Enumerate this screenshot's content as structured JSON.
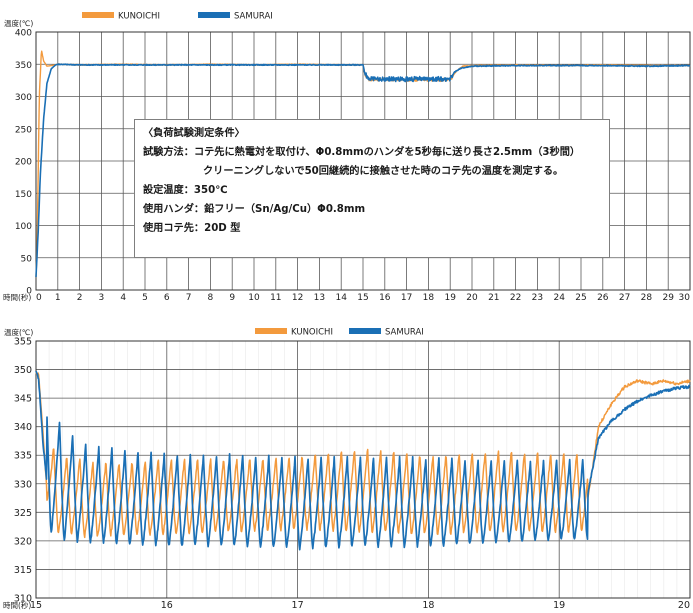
{
  "colors": {
    "kunoichi": "#F39A3D",
    "samurai": "#1A6FB5",
    "grid": "#5a5a5a",
    "gridMinor": "#dddddd"
  },
  "conditions": {
    "heading": "〈負荷試験測定条件〉",
    "method_label": "試験方法：",
    "method_1": "コテ先に熱電対を取付け、Φ0.8mmのハンダを5秒毎に送り長さ2.5mm（3秒間）",
    "method_2": "クリーニングしないで50回継続的に接触させた時のコテ先の温度を測定する。",
    "temp": "設定温度：350℃",
    "solder": "使用ハンダ：鉛フリー（Sn/Ag/Cu）Φ0.8mm",
    "tip": "使用コテ先：20D 型"
  },
  "chart_data": [
    {
      "type": "line",
      "ylabel": "温度(℃)",
      "xlabel": "時間(秒)",
      "xlim": [
        0,
        30
      ],
      "ylim": [
        0,
        400
      ],
      "xticks": [
        0,
        1,
        2,
        3,
        4,
        5,
        6,
        7,
        8,
        9,
        10,
        11,
        12,
        13,
        14,
        15,
        16,
        17,
        18,
        19,
        20,
        21,
        22,
        23,
        24,
        25,
        26,
        27,
        28,
        29,
        30
      ],
      "yticks": [
        0,
        50,
        100,
        150,
        200,
        250,
        300,
        350,
        400
      ],
      "legend": "top-left",
      "grid": true,
      "series": [
        {
          "name": "KUNOICHI",
          "color": "#F39A3D",
          "x": [
            0,
            0.05,
            0.15,
            0.25,
            0.35,
            0.5,
            0.7,
            1.0,
            2,
            4,
            6,
            8,
            10,
            12,
            14,
            15,
            15.1,
            15.3,
            19,
            19.3,
            19.6,
            20,
            22,
            24,
            26,
            28,
            30
          ],
          "y": [
            20,
            60,
            300,
            372,
            355,
            347,
            348,
            350,
            349,
            350,
            349,
            350,
            349,
            350,
            349,
            349,
            333,
            326,
            326,
            340,
            347,
            348,
            349,
            348,
            349,
            348,
            348
          ]
        },
        {
          "name": "SAMURAI",
          "color": "#1A6FB5",
          "x": [
            0,
            0.1,
            0.2,
            0.35,
            0.5,
            0.7,
            0.9,
            1.0,
            2,
            4,
            6,
            8,
            10,
            12,
            14,
            15,
            15.1,
            15.3,
            19,
            19.2,
            19.5,
            20,
            22,
            24,
            26,
            28,
            30
          ],
          "y": [
            20,
            90,
            180,
            265,
            320,
            343,
            349,
            350,
            349,
            349,
            349,
            349,
            349,
            349,
            349,
            349,
            334,
            327,
            327,
            338,
            344,
            347,
            348,
            348,
            348,
            347,
            348
          ]
        }
      ]
    },
    {
      "type": "line",
      "ylabel": "温度(℃)",
      "xlabel": "時間(秒)",
      "xlim": [
        15,
        20
      ],
      "ylim": [
        310,
        355
      ],
      "xticks": [
        15,
        16,
        17,
        18,
        19,
        20
      ],
      "yticks": [
        310,
        315,
        320,
        325,
        330,
        335,
        340,
        345,
        350,
        355
      ],
      "legend": "top-center",
      "grid": true,
      "cycle_period_s": 0.1,
      "series": [
        {
          "name": "KUNOICHI",
          "color": "#F39A3D",
          "x": [
            14.98,
            15.0,
            15.02,
            15.05,
            15.08,
            15.12,
            15.2,
            15.3,
            15.4,
            15.6,
            15.8,
            16.0,
            16.5,
            17.0,
            17.5,
            18.0,
            18.5,
            19.0,
            19.2,
            19.25,
            19.3,
            19.4,
            19.5,
            19.6,
            19.7,
            19.8,
            19.9,
            20.0
          ],
          "y": [
            349.5,
            349.6,
            349.2,
            340,
            330,
            328,
            326,
            325,
            324,
            324,
            324,
            324.5,
            325,
            325.5,
            325.5,
            325,
            325.5,
            326,
            325,
            332,
            340,
            344,
            347,
            348,
            347.5,
            348,
            347.5,
            348
          ],
          "min": [
            null,
            null,
            null,
            null,
            325,
            322,
            321,
            321,
            320.5,
            321,
            321,
            321,
            321.5,
            322,
            321.5,
            321,
            321.5,
            321.5,
            null,
            null,
            null,
            null,
            null,
            null,
            null,
            null,
            null,
            null
          ],
          "max": [
            null,
            null,
            null,
            null,
            340,
            337,
            335,
            335,
            334,
            334,
            334,
            334.5,
            334.5,
            335,
            336.5,
            335,
            336,
            335.5,
            null,
            null,
            null,
            null,
            null,
            null,
            null,
            null,
            null,
            null
          ]
        },
        {
          "name": "SAMURAI",
          "color": "#1A6FB5",
          "x": [
            14.98,
            15.0,
            15.02,
            15.05,
            15.08,
            15.12,
            15.2,
            15.3,
            15.4,
            15.6,
            15.8,
            16.0,
            16.5,
            17.0,
            17.5,
            18.0,
            18.5,
            19.0,
            19.2,
            19.25,
            19.3,
            19.4,
            19.5,
            19.6,
            19.7,
            19.8,
            19.9,
            20.0
          ],
          "y": [
            348.8,
            349.5,
            348.5,
            338,
            331,
            329,
            327.5,
            327,
            327,
            327,
            326.5,
            326.5,
            326.5,
            326.5,
            326.5,
            326.5,
            326.5,
            326.5,
            326,
            332,
            338,
            341,
            343,
            344.5,
            345.5,
            346.2,
            346.8,
            347
          ],
          "min": [
            null,
            null,
            null,
            null,
            323,
            321,
            320,
            320,
            319.5,
            319.5,
            319,
            319,
            319,
            318.5,
            319,
            319,
            319.5,
            320,
            null,
            null,
            null,
            null,
            null,
            null,
            null,
            null,
            null,
            null
          ],
          "max": [
            null,
            null,
            null,
            null,
            345,
            343,
            340,
            338,
            336.5,
            336,
            335.5,
            335,
            335,
            334.5,
            334.5,
            334.5,
            334,
            334,
            null,
            null,
            null,
            null,
            null,
            null,
            null,
            null,
            null,
            null
          ]
        }
      ]
    }
  ]
}
